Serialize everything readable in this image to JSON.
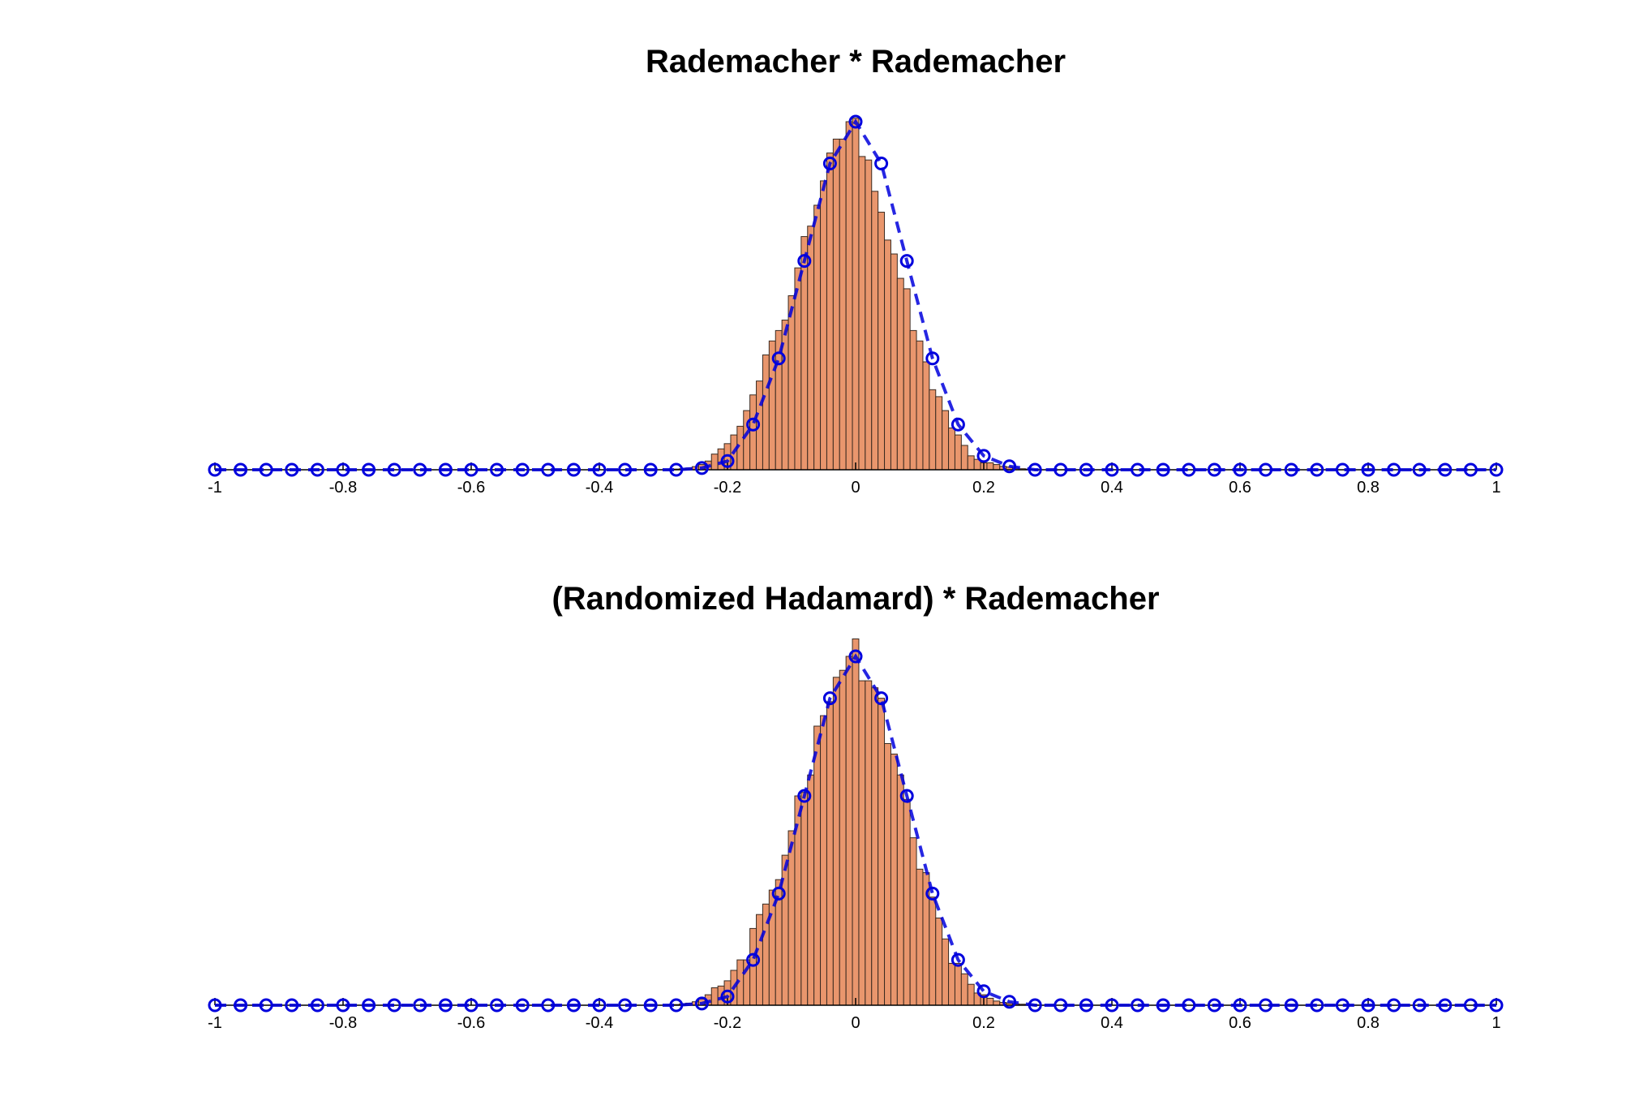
{
  "chart_data": [
    {
      "type": "bar",
      "title": "Rademacher * Rademacher",
      "xlabel": "",
      "ylabel": "",
      "xlim": [
        -1,
        1
      ],
      "x_ticks": [
        -1,
        -0.8,
        -0.6,
        -0.4,
        -0.2,
        0,
        0.2,
        0.4,
        0.6,
        0.8,
        1
      ],
      "x_tick_labels": [
        "-1",
        "-0.8",
        "-0.6",
        "-0.4",
        "-0.2",
        "0",
        "0.2",
        "0.4",
        "0.6",
        "0.8",
        "1"
      ],
      "grid": false,
      "legend": "none",
      "series": [
        {
          "kind": "histogram",
          "color": "#e9966d",
          "edge_color": "#3a2a20",
          "bin_width": 0.01,
          "x": [
            -0.28,
            -0.27,
            -0.26,
            -0.25,
            -0.24,
            -0.23,
            -0.22,
            -0.21,
            -0.2,
            -0.19,
            -0.18,
            -0.17,
            -0.16,
            -0.15,
            -0.14,
            -0.13,
            -0.12,
            -0.11,
            -0.1,
            -0.09,
            -0.08,
            -0.07,
            -0.06,
            -0.05,
            -0.04,
            -0.03,
            -0.02,
            -0.01,
            0,
            0.01,
            0.02,
            0.03,
            0.04,
            0.05,
            0.06,
            0.07,
            0.08,
            0.09,
            0.1,
            0.11,
            0.12,
            0.13,
            0.14,
            0.15,
            0.16,
            0.17,
            0.18,
            0.19,
            0.2,
            0.21,
            0.22,
            0.23,
            0.24,
            0.25,
            0.26,
            0.27,
            0.28
          ],
          "values": [
            0.002,
            0.003,
            0.005,
            0.009,
            0.015,
            0.025,
            0.045,
            0.06,
            0.075,
            0.1,
            0.125,
            0.17,
            0.215,
            0.255,
            0.33,
            0.37,
            0.4,
            0.43,
            0.5,
            0.58,
            0.67,
            0.7,
            0.76,
            0.83,
            0.91,
            0.95,
            0.95,
            1.0,
            1.01,
            0.9,
            0.89,
            0.8,
            0.74,
            0.66,
            0.62,
            0.55,
            0.52,
            0.4,
            0.37,
            0.31,
            0.23,
            0.21,
            0.17,
            0.12,
            0.1,
            0.07,
            0.04,
            0.03,
            0.02,
            0.02,
            0.015,
            0.01,
            0.008,
            0.005,
            0.003,
            0.002,
            0.001
          ]
        },
        {
          "kind": "line",
          "style": "dashed-with-circles",
          "color": "#0000dd",
          "x": [
            -1,
            -0.96,
            -0.92,
            -0.88,
            -0.84,
            -0.8,
            -0.76,
            -0.72,
            -0.68,
            -0.64,
            -0.6,
            -0.56,
            -0.52,
            -0.48,
            -0.44,
            -0.4,
            -0.36,
            -0.32,
            -0.28,
            -0.24,
            -0.2,
            -0.16,
            -0.12,
            -0.08,
            -0.04,
            0,
            0.04,
            0.08,
            0.12,
            0.16,
            0.2,
            0.24,
            0.28,
            0.32,
            0.36,
            0.4,
            0.44,
            0.48,
            0.52,
            0.56,
            0.6,
            0.64,
            0.68,
            0.72,
            0.76,
            0.8,
            0.84,
            0.88,
            0.92,
            0.96,
            1
          ],
          "values": [
            0,
            0,
            0,
            0,
            0,
            0,
            0,
            0,
            0,
            0,
            0,
            0,
            0,
            0,
            0,
            0,
            0,
            0,
            0,
            0.005,
            0.025,
            0.13,
            0.32,
            0.6,
            0.88,
            1.0,
            0.88,
            0.6,
            0.32,
            0.13,
            0.04,
            0.01,
            0,
            0,
            0,
            0,
            0,
            0,
            0,
            0,
            0,
            0,
            0,
            0,
            0,
            0,
            0,
            0,
            0,
            0,
            0
          ]
        }
      ]
    },
    {
      "type": "bar",
      "title": "(Randomized Hadamard) * Rademacher",
      "xlabel": "",
      "ylabel": "",
      "xlim": [
        -1,
        1
      ],
      "x_ticks": [
        -1,
        -0.8,
        -0.6,
        -0.4,
        -0.2,
        0,
        0.2,
        0.4,
        0.6,
        0.8,
        1
      ],
      "x_tick_labels": [
        "-1",
        "-0.8",
        "-0.6",
        "-0.4",
        "-0.2",
        "0",
        "0.2",
        "0.4",
        "0.6",
        "0.8",
        "1"
      ],
      "grid": false,
      "legend": "none",
      "series": [
        {
          "kind": "histogram",
          "color": "#e9966d",
          "edge_color": "#3a2a20",
          "bin_width": 0.01,
          "x": [
            -0.28,
            -0.27,
            -0.26,
            -0.25,
            -0.24,
            -0.23,
            -0.22,
            -0.21,
            -0.2,
            -0.19,
            -0.18,
            -0.17,
            -0.16,
            -0.15,
            -0.14,
            -0.13,
            -0.12,
            -0.11,
            -0.1,
            -0.09,
            -0.08,
            -0.07,
            -0.06,
            -0.05,
            -0.04,
            -0.03,
            -0.02,
            -0.01,
            0,
            0.01,
            0.02,
            0.03,
            0.04,
            0.05,
            0.06,
            0.07,
            0.08,
            0.09,
            0.1,
            0.11,
            0.12,
            0.13,
            0.14,
            0.15,
            0.16,
            0.17,
            0.18,
            0.19,
            0.2,
            0.21,
            0.22,
            0.23,
            0.24,
            0.25,
            0.26,
            0.27,
            0.28
          ],
          "values": [
            0.002,
            0.004,
            0.006,
            0.01,
            0.018,
            0.03,
            0.05,
            0.055,
            0.07,
            0.1,
            0.13,
            0.13,
            0.22,
            0.26,
            0.29,
            0.33,
            0.36,
            0.43,
            0.5,
            0.6,
            0.61,
            0.66,
            0.8,
            0.83,
            0.87,
            0.94,
            0.96,
            1.0,
            1.05,
            0.93,
            0.93,
            0.91,
            0.88,
            0.75,
            0.72,
            0.66,
            0.59,
            0.48,
            0.39,
            0.38,
            0.31,
            0.25,
            0.19,
            0.12,
            0.12,
            0.09,
            0.06,
            0.035,
            0.03,
            0.02,
            0.012,
            0.008,
            0.006,
            0.004,
            0.003,
            0.002,
            0.001
          ]
        },
        {
          "kind": "line",
          "style": "dashed-with-circles",
          "color": "#0000dd",
          "x": [
            -1,
            -0.96,
            -0.92,
            -0.88,
            -0.84,
            -0.8,
            -0.76,
            -0.72,
            -0.68,
            -0.64,
            -0.6,
            -0.56,
            -0.52,
            -0.48,
            -0.44,
            -0.4,
            -0.36,
            -0.32,
            -0.28,
            -0.24,
            -0.2,
            -0.16,
            -0.12,
            -0.08,
            -0.04,
            0,
            0.04,
            0.08,
            0.12,
            0.16,
            0.2,
            0.24,
            0.28,
            0.32,
            0.36,
            0.4,
            0.44,
            0.48,
            0.52,
            0.56,
            0.6,
            0.64,
            0.68,
            0.72,
            0.76,
            0.8,
            0.84,
            0.88,
            0.92,
            0.96,
            1
          ],
          "values": [
            0,
            0,
            0,
            0,
            0,
            0,
            0,
            0,
            0,
            0,
            0,
            0,
            0,
            0,
            0,
            0,
            0,
            0,
            0,
            0.005,
            0.025,
            0.13,
            0.32,
            0.6,
            0.88,
            1.0,
            0.88,
            0.6,
            0.32,
            0.13,
            0.04,
            0.01,
            0,
            0,
            0,
            0,
            0,
            0,
            0,
            0,
            0,
            0,
            0,
            0,
            0,
            0,
            0,
            0,
            0,
            0,
            0
          ]
        }
      ]
    }
  ]
}
